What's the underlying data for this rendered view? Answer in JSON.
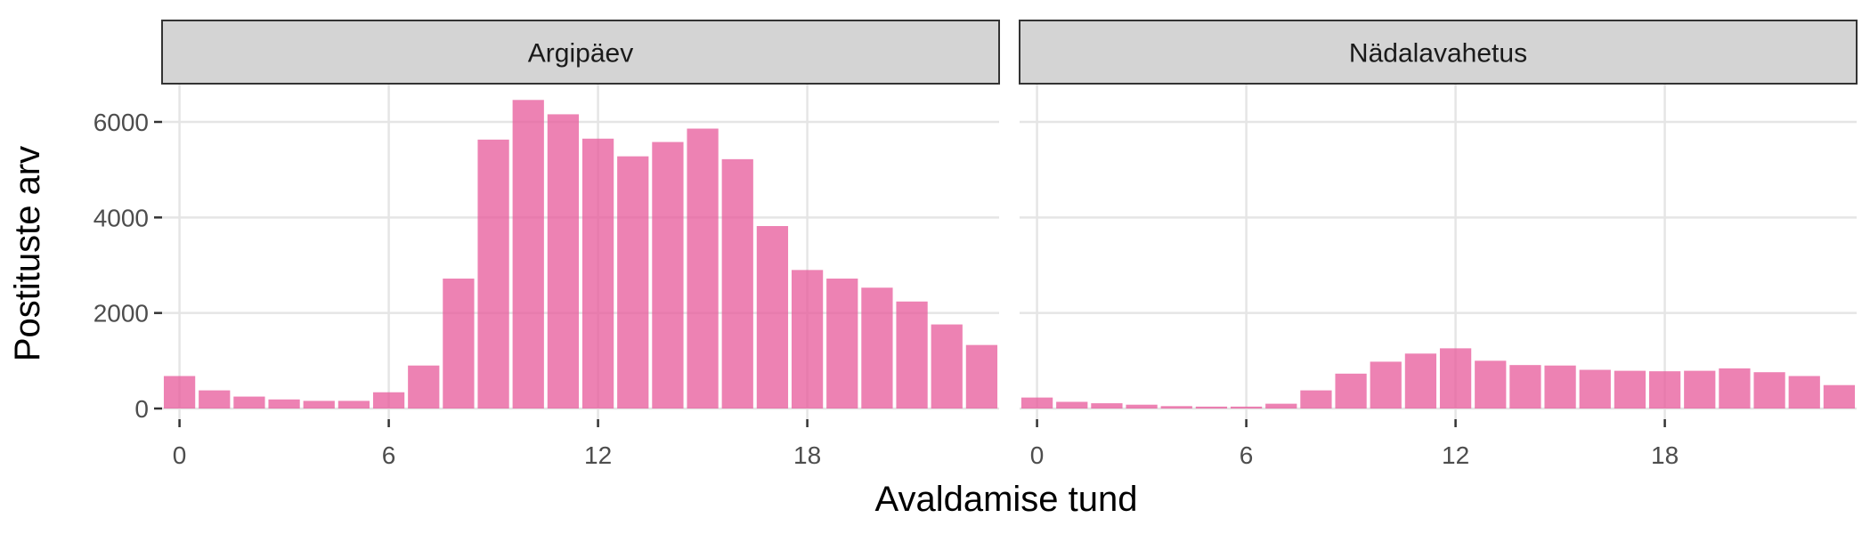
{
  "chart_data": {
    "type": "bar",
    "xlabel": "Avaldamise tund",
    "ylabel": "Postituste arv",
    "ylim": [
      0,
      6900
    ],
    "xlim": [
      -0.5,
      23.5
    ],
    "x_ticks": [
      0,
      6,
      12,
      18
    ],
    "y_ticks": [
      0,
      2000,
      4000,
      6000
    ],
    "grid": true,
    "bar_color": "#E7589A",
    "facets": [
      {
        "label": "Argipäev",
        "x": [
          0,
          1,
          2,
          3,
          4,
          5,
          6,
          7,
          8,
          9,
          10,
          11,
          12,
          13,
          14,
          15,
          16,
          17,
          18,
          19,
          20,
          21,
          22,
          23
        ],
        "values": [
          680,
          380,
          250,
          190,
          160,
          160,
          340,
          900,
          2720,
          5630,
          6460,
          6160,
          5650,
          5280,
          5580,
          5860,
          5220,
          3820,
          2900,
          2720,
          2530,
          2240,
          1760,
          1330
        ]
      },
      {
        "label": "Nädalavahetus",
        "x": [
          0,
          1,
          2,
          3,
          4,
          5,
          6,
          7,
          8,
          9,
          10,
          11,
          12,
          13,
          14,
          15,
          16,
          17,
          18,
          19,
          20,
          21,
          22,
          23
        ],
        "values": [
          230,
          140,
          110,
          80,
          50,
          40,
          40,
          100,
          380,
          730,
          980,
          1150,
          1260,
          1000,
          910,
          900,
          810,
          790,
          780,
          790,
          840,
          760,
          680,
          490
        ]
      }
    ]
  }
}
